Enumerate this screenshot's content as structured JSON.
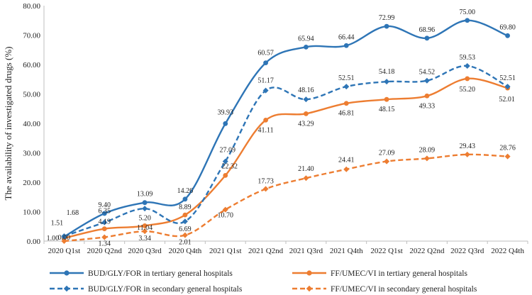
{
  "chart_data": {
    "type": "line",
    "title": "",
    "xlabel": "",
    "ylabel": "The availability of investigated drugs (%)",
    "ylim": [
      0,
      80
    ],
    "yticks": [
      "0.00",
      "10.00",
      "20.00",
      "30.00",
      "40.00",
      "50.00",
      "60.00",
      "70.00",
      "80.00"
    ],
    "grid": false,
    "legend_position": "bottom",
    "categories": [
      "2020 Q1st",
      "2020 Q2nd",
      "2020 Q3rd",
      "2020 Q4th",
      "2021 Q1st",
      "2021 Q2nd",
      "2021 Q3rd",
      "2021 Q4th",
      "2022 Q1st",
      "2022 Q2nd",
      "2022 Q3rd",
      "2022 Q4th"
    ],
    "series": [
      {
        "key": "bud_tertiary",
        "name": "BUD/GLY/FOR in tertiary general hospitals",
        "color": "#2E75B6",
        "dash": "solid",
        "marker": "circle",
        "values": [
          1.51,
          9.4,
          13.09,
          14.26,
          39.93,
          60.57,
          65.94,
          66.44,
          72.99,
          68.96,
          75.0,
          69.8
        ],
        "labels": [
          "1.51",
          "9.40",
          "13.09",
          "14.26",
          "39.93",
          "60.57",
          "65.94",
          "66.44",
          "72.99",
          "68.96",
          "75.00",
          "69.80"
        ]
      },
      {
        "key": "bud_secondary",
        "name": "BUD/GLY/FOR in secondary general hospitals",
        "color": "#2E75B6",
        "dash": "dashed",
        "marker": "diamond",
        "values": [
          1.68,
          6.35,
          11.04,
          6.69,
          27.09,
          51.17,
          48.16,
          52.51,
          54.18,
          54.52,
          59.53,
          52.51
        ],
        "labels": [
          "1.68",
          "6.35",
          "11.04",
          "6.69",
          "27.09",
          "51.17",
          "48.16",
          "52.51",
          "54.18",
          "54.52",
          "59.53",
          "52.51"
        ]
      },
      {
        "key": "ff_tertiary",
        "name": "FF/UMEC/VI in tertiary general hospitals",
        "color": "#ED7D31",
        "dash": "solid",
        "marker": "circle",
        "values": [
          1.0,
          4.19,
          5.2,
          8.89,
          22.32,
          41.11,
          43.29,
          46.81,
          48.15,
          49.33,
          55.2,
          52.01
        ],
        "labels": [
          "1.00",
          "4.19",
          "5.20",
          "8.89",
          "22.32",
          "41.11",
          "43.29",
          "46.81",
          "48.15",
          "49.33",
          "55.20",
          "52.01"
        ]
      },
      {
        "key": "ff_secondary",
        "name": "FF/UMEC/VI in secondary general hospitals",
        "color": "#ED7D31",
        "dash": "dashed",
        "marker": "diamond",
        "values": [
          0.0,
          1.34,
          3.34,
          2.01,
          10.7,
          17.73,
          21.4,
          24.41,
          27.09,
          28.09,
          29.43,
          28.76
        ],
        "labels": [
          "0.00",
          "1.34",
          "3.34",
          "2.01",
          "10.70",
          "17.73",
          "21.40",
          "24.41",
          "27.09",
          "28.09",
          "29.43",
          "28.76"
        ]
      }
    ]
  }
}
